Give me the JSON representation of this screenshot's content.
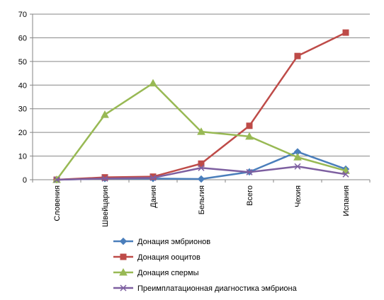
{
  "chart_data": {
    "type": "line",
    "categories": [
      "Словения",
      "Швейцария",
      "Дания",
      "Бельгия",
      "Всего",
      "Чехия",
      "Испания"
    ],
    "ylim": [
      0,
      70
    ],
    "yticks": [
      "0",
      "10",
      "20",
      "30",
      "40",
      "50",
      "60",
      "70"
    ],
    "grid": true,
    "legend_position": "bottom",
    "series": [
      {
        "name": "Донация эмбрионов",
        "color": "#4a7ebb",
        "marker": "diamond",
        "values": [
          0,
          0.5,
          0.5,
          0.3,
          3.3,
          11.8,
          4.5
        ]
      },
      {
        "name": "Донация ооцитов",
        "color": "#be4b48",
        "marker": "square",
        "values": [
          0,
          1,
          1.3,
          6.8,
          22.8,
          52.3,
          62.2
        ]
      },
      {
        "name": "Донация спермы",
        "color": "#98b954",
        "marker": "triangle",
        "values": [
          0,
          27.5,
          40.8,
          20.3,
          18.3,
          9.5,
          3.8
        ]
      },
      {
        "name": "Преимплатационная диагностика эмбриона",
        "color": "#7d5fa0",
        "marker": "x",
        "values": [
          0,
          0.5,
          0.8,
          5,
          3.2,
          5.6,
          2.3
        ]
      }
    ]
  }
}
